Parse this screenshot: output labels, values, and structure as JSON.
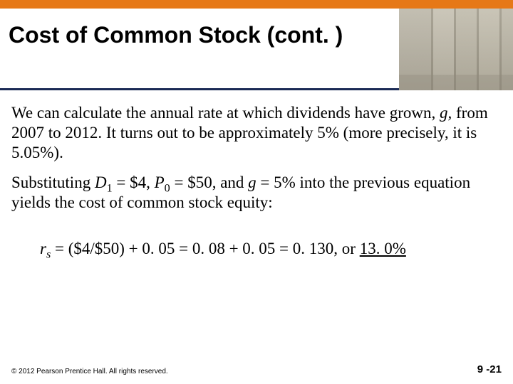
{
  "colors": {
    "orange_bar": "#e67817",
    "title_underline": "#1a2a55",
    "background": "#ffffff",
    "text": "#000000"
  },
  "header": {
    "title": "Cost of Common Stock (cont. )"
  },
  "body": {
    "para1_a": "We can calculate the annual rate at which dividends have grown, ",
    "para1_g": "g,",
    "para1_b": " from 2007 to 2012. It turns out to be approximately 5% (more precisely, it is 5.05%).",
    "para2_a": "Substituting ",
    "para2_D": "D",
    "para2_D_sub": "1",
    "para2_b": " = $4, ",
    "para2_P": "P",
    "para2_P_sub": "0",
    "para2_c": " = $50, and ",
    "para2_g": "g",
    "para2_d": " = 5% into the previous equation yields the cost of common stock equity:",
    "eq_r": "r",
    "eq_r_sub": "s",
    "eq_body": " = ($4/$50) + 0. 05 = 0. 08 + 0. 05 = 0. 130, or ",
    "eq_result": "13. 0%"
  },
  "footer": {
    "copyright": "© 2012 Pearson Prentice Hall. All rights reserved.",
    "page": "9 -21"
  }
}
